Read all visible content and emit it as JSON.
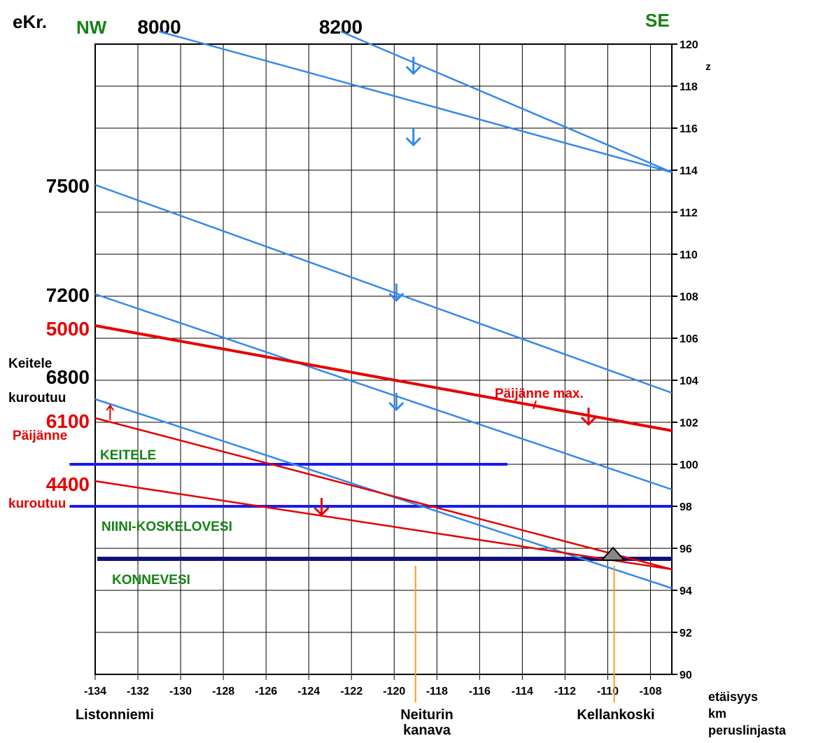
{
  "chart_data": {
    "type": "line",
    "title": "",
    "xlabel": [
      "etäisyys",
      "km",
      "peruslinjasta"
    ],
    "ylabel": "z",
    "xlim": [
      -134,
      -107
    ],
    "ylim": [
      90,
      120
    ],
    "x_ticks": [
      -134,
      -132,
      -130,
      -128,
      -126,
      -124,
      -122,
      -120,
      -118,
      -116,
      -114,
      -112,
      -110,
      -108
    ],
    "y_ticks": [
      90,
      92,
      94,
      96,
      98,
      100,
      102,
      104,
      106,
      108,
      110,
      112,
      114,
      116,
      118,
      120
    ],
    "grid": true,
    "direction_labels": {
      "left": "NW",
      "right": "SE",
      "left_color": "#148214",
      "right_color": "#148214"
    },
    "era_label": "eKr.",
    "top_year_labels": [
      {
        "text": "8000",
        "x": -131
      },
      {
        "text": "8200",
        "x": -122.5
      }
    ],
    "left_year_labels": [
      {
        "text": "7500",
        "y": 113.3,
        "color": "#000000"
      },
      {
        "text": "7200",
        "y": 108.1,
        "color": "#000000"
      },
      {
        "text": "5000",
        "y": 106.5,
        "color": "#e60000"
      },
      {
        "text": "6800",
        "y": 104.2,
        "color": "#000000"
      },
      {
        "text": "6100",
        "y": 102.1,
        "color": "#e60000"
      },
      {
        "text": "4400",
        "y": 99.1,
        "color": "#e60000"
      }
    ],
    "left_annotations": [
      {
        "text": "Keitele",
        "color": "#000000"
      },
      {
        "text": "kuroutuu",
        "color": "#000000"
      },
      {
        "text": "Päijänne",
        "color": "#e60000"
      },
      {
        "text": "kuroutuu",
        "color": "#e60000"
      }
    ],
    "series": [
      {
        "color": "#3388ee",
        "points": [
          [
            -131,
            120.6
          ],
          [
            -107,
            113.9
          ]
        ]
      },
      {
        "color": "#3388ee",
        "points": [
          [
            -122.5,
            120.6
          ],
          [
            -107,
            113.9
          ]
        ],
        "note_skip": true
      },
      {
        "color": "#3388ee",
        "points": [
          [
            -134,
            113.3
          ],
          [
            -107,
            103.4
          ]
        ]
      },
      {
        "color": "#3388ee",
        "points": [
          [
            -134,
            108.1
          ],
          [
            -107,
            98.8
          ]
        ]
      },
      {
        "color": "#3388ee",
        "points": [
          [
            -134,
            103.1
          ],
          [
            -107,
            94.1
          ]
        ]
      },
      {
        "color": "#e60000",
        "name": "Päijänne max.",
        "points": [
          [
            -134,
            106.6
          ],
          [
            -107,
            101.6
          ]
        ]
      },
      {
        "color": "#e60000",
        "points": [
          [
            -134,
            102.2
          ],
          [
            -107,
            95.0
          ]
        ]
      },
      {
        "color": "#e60000",
        "points": [
          [
            -134,
            99.2
          ],
          [
            -107,
            95.0
          ]
        ]
      }
    ],
    "lake_levels": [
      {
        "name": "KEITELE",
        "y": 100,
        "x": [
          -135.2,
          -114.7
        ],
        "color": "#1a1aee",
        "label_color": "#148214"
      },
      {
        "name": "NIINI-KOSKELOVESI",
        "y": 98,
        "x": [
          -135.2,
          -107
        ],
        "color": "#1a1aee",
        "label_color": "#148214"
      },
      {
        "name": "KONNEVESI",
        "y": 95.5,
        "x": [
          -133.9,
          -107
        ],
        "color": "#101080",
        "label_color": "#148214"
      }
    ],
    "down_arrows": [
      {
        "x": -119.1,
        "y": 118.6,
        "color": "#3388ee"
      },
      {
        "x": -119.1,
        "y": 115.2,
        "color": "#3388ee"
      },
      {
        "x": -119.9,
        "y": 107.8,
        "color": "#3388ee"
      },
      {
        "x": -119.9,
        "y": 102.6,
        "color": "#3388ee"
      },
      {
        "x": -110.9,
        "y": 101.9,
        "color": "#e60000"
      },
      {
        "x": -123.4,
        "y": 97.6,
        "color": "#e60000"
      }
    ],
    "up_arrow": {
      "x": -133.3,
      "y": 102.5,
      "color": "#e60000"
    },
    "places": [
      {
        "name": [
          "Listonniemi"
        ],
        "x": -134
      },
      {
        "name": [
          "Neiturin",
          "kanava"
        ],
        "x": -119,
        "marker_color": "#ff9a1e"
      },
      {
        "name": [
          "Kellankoski"
        ],
        "x": -109.7,
        "marker_color": "#ff9a1e"
      }
    ]
  }
}
